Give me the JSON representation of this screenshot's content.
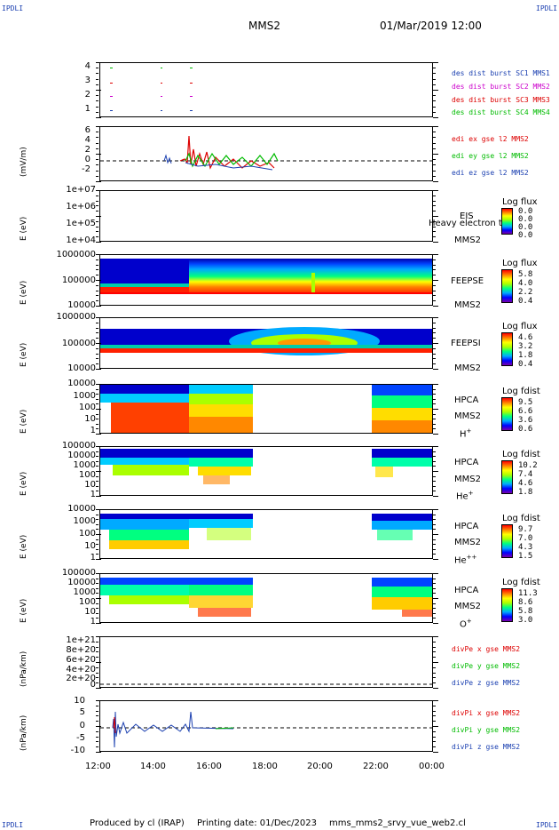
{
  "corners": {
    "tl": "IPDLI",
    "tr": "IPDLI",
    "bl": "IPDLI",
    "br": "IPDLI"
  },
  "header": {
    "spacecraft": "MMS2",
    "datetime": "01/Mar/2019 12:00"
  },
  "footer": {
    "produced": "Produced by cl (IRAP)",
    "printed": "Printing date: 01/Dec/2023",
    "file": "mms_mms2_srvy_vue_web2.cl"
  },
  "x_axis": {
    "ticks": [
      "12:00",
      "14:00",
      "16:00",
      "18:00",
      "20:00",
      "22:00",
      "00:00"
    ]
  },
  "panels": {
    "burst": {
      "yticks": [
        "4",
        "3",
        "2",
        "1"
      ],
      "legend": [
        {
          "text": "des dist burst SC1 MMS1",
          "color": "#1a3fb0"
        },
        {
          "text": "des dist burst SC2 MMS2",
          "color": "#cc00cc"
        },
        {
          "text": "des dist burst SC3 MMS3",
          "color": "#dd0000"
        },
        {
          "text": "des dist burst SC4 MMS4",
          "color": "#00bb00"
        }
      ]
    },
    "edi": {
      "ylabel": "(mV/m)",
      "yticks": [
        "6",
        "4",
        "2",
        "0",
        "-2"
      ],
      "legend": [
        {
          "text": "edi ex gse l2 MMS2",
          "color": "#dd0000"
        },
        {
          "text": "edi ey gse l2 MMS2",
          "color": "#00bb00"
        },
        {
          "text": "edi ez gse l2 MMS2",
          "color": "#1a3fb0"
        }
      ]
    },
    "eis": {
      "ylabel": "E (eV)",
      "yticks": [
        "1e+07",
        "1e+06",
        "1e+05",
        "1e+04"
      ],
      "inst": "EIS",
      "sc": "MMS2",
      "overlay": "Heavy electron to",
      "cb_title": "Log flux",
      "cb_ticks": [
        "0.0",
        "0.0",
        "0.0",
        "0.0"
      ]
    },
    "feepse": {
      "ylabel": "E (eV)",
      "yticks": [
        "1000000",
        "100000",
        "10000"
      ],
      "inst": "FEEPSE",
      "sc": "MMS2",
      "cb_title": "Log flux",
      "cb_ticks": [
        "5.8",
        "4.0",
        "2.2",
        "0.4"
      ]
    },
    "feepsi": {
      "ylabel": "E (eV)",
      "yticks": [
        "1000000",
        "100000",
        "10000"
      ],
      "inst": "FEEPSI",
      "sc": "MMS2",
      "cb_title": "Log flux",
      "cb_ticks": [
        "4.6",
        "3.2",
        "1.8",
        "0.4"
      ]
    },
    "hpca_h": {
      "ylabel": "E (eV)",
      "yticks": [
        "10000",
        "1000",
        "100",
        "10",
        "1"
      ],
      "inst": "HPCA",
      "sc": "MMS2",
      "species": "H",
      "charge": "+",
      "cb_title": "Log fdist",
      "cb_ticks": [
        "9.5",
        "6.6",
        "3.6",
        "0.6"
      ]
    },
    "hpca_he": {
      "ylabel": "E (eV)",
      "yticks": [
        "100000",
        "10000",
        "1000",
        "100",
        "10",
        "1"
      ],
      "inst": "HPCA",
      "sc": "MMS2",
      "species": "He",
      "charge": "+",
      "cb_title": "Log fdist",
      "cb_ticks": [
        "10.2",
        "7.4",
        "4.6",
        "1.8"
      ]
    },
    "hpca_hepp": {
      "ylabel": "E (eV)",
      "yticks": [
        "10000",
        "1000",
        "100",
        "10",
        "1"
      ],
      "inst": "HPCA",
      "sc": "MMS2",
      "species": "He",
      "charge": "++",
      "cb_title": "Log fdist",
      "cb_ticks": [
        "9.7",
        "7.0",
        "4.3",
        "1.5"
      ]
    },
    "hpca_o": {
      "ylabel": "E (eV)",
      "yticks": [
        "100000",
        "10000",
        "1000",
        "100",
        "10",
        "1"
      ],
      "inst": "HPCA",
      "sc": "MMS2",
      "species": "O",
      "charge": "+",
      "cb_title": "Log fdist",
      "cb_ticks": [
        "11.3",
        "8.6",
        "5.8",
        "3.0"
      ]
    },
    "divpe": {
      "ylabel": "(nPa/km)",
      "yticks": [
        "1e+21",
        "8e+20",
        "6e+20",
        "4e+20",
        "2e+20",
        "0"
      ],
      "legend": [
        {
          "text": "divPe x gse MMS2",
          "color": "#dd0000"
        },
        {
          "text": "divPe y gse MMS2",
          "color": "#00bb00"
        },
        {
          "text": "divPe z gse MMS2",
          "color": "#1a3fb0"
        }
      ]
    },
    "divpi": {
      "ylabel": "(nPa/km)",
      "yticks": [
        "10",
        "5",
        "0",
        "-5",
        "-10"
      ],
      "legend": [
        {
          "text": "divPi x gse MMS2",
          "color": "#dd0000"
        },
        {
          "text": "divPi y gse MMS2",
          "color": "#00bb00"
        },
        {
          "text": "divPi z gse MMS2",
          "color": "#1a3fb0"
        }
      ]
    }
  },
  "chart_data": {
    "type": "heatmap",
    "title": "MMS2 01/Mar/2019 12:00",
    "x_range": [
      "12:00",
      "00:00"
    ],
    "x_ticks": [
      "12:00",
      "14:00",
      "16:00",
      "18:00",
      "20:00",
      "22:00",
      "00:00"
    ],
    "hpca_data_gaps": [
      [
        "17:30",
        "21:50"
      ]
    ],
    "burst_intervals": [
      "12:40",
      "14:10",
      "15:20"
    ]
  }
}
